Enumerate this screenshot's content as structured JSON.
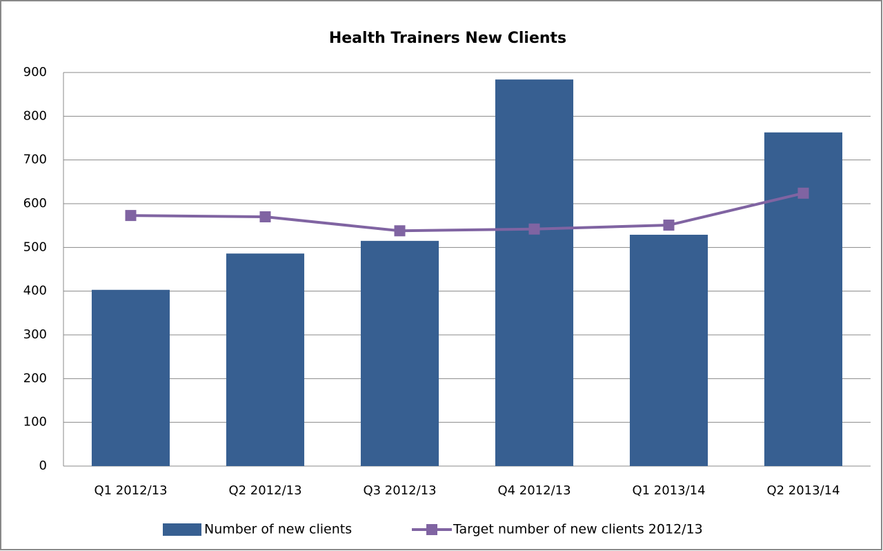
{
  "chart_data": {
    "type": "bar",
    "title": "Health Trainers New Clients",
    "categories": [
      "Q1 2012/13",
      "Q2 2012/13",
      "Q3 2012/13",
      "Q4 2012/13",
      "Q1 2013/14",
      "Q2 2013/14"
    ],
    "series": [
      {
        "name": "Number of new clients",
        "type": "bar",
        "color": "#375f91",
        "values": [
          403,
          486,
          515,
          884,
          529,
          763
        ]
      },
      {
        "name": "Target number of new clients 2012/13",
        "type": "line",
        "color": "#8064a2",
        "values": [
          573,
          570,
          538,
          542,
          551,
          624
        ]
      }
    ],
    "ylim": [
      0,
      900
    ],
    "yticks": [
      0,
      100,
      200,
      300,
      400,
      500,
      600,
      700,
      800,
      900
    ],
    "grid": true,
    "legend": "bottom"
  }
}
